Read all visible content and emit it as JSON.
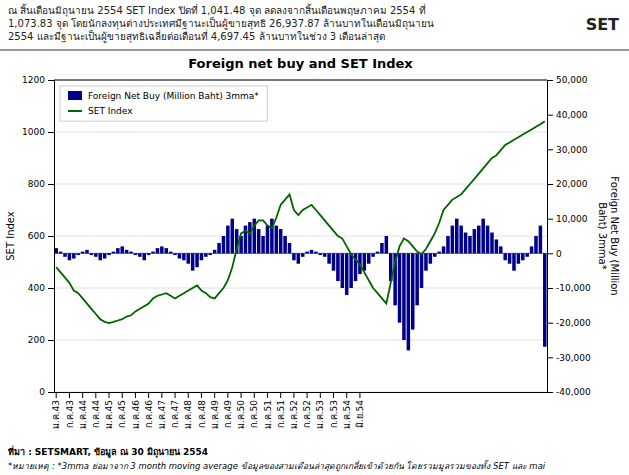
{
  "chart_data": {
    "type": "bar",
    "title": "Foreign net buy and SET Index",
    "subtitle": "ณ สิ้นเดือนมิถุนายน 2554 SET Index ปิดที่ 1,041.48 จุด ลดลงจากสิ้นเดือนพฤษภาคม 2554 ที่\n1,073.83 จุด  โดยนักลงทุนต่างประเทศมีฐานะเป็นผู้ขายสุทธิ 26,937.87 ล้านบาทในเดือนมิถุนายน\n2554 และมีฐานะเป็นผู้ขายสุทธิเฉลี่ยต่อเดือนที่ 4,697.45 ล้านบาทในช่วง 3 เดือนล่าสุด",
    "annotations": [
      "SET"
    ],
    "source": "ที่มา : SETSMART, ข้อมูล ณ 30 มิถุนายน 2554",
    "note": "*หมายเหตุ : *3mma ย่อมาจาก 3 month moving average  ข้อมูลของสามเดือนล่าสุดถูกเกลี่ยเข้าด้วยกัน  โดยรวมมูลรวมของทั้ง SET และ mai",
    "ylabel": "SET Index",
    "y2label": "Foreign Net Buy (Million\nBaht) 3mma*",
    "ylim": [
      0,
      1200
    ],
    "yticks": [
      0,
      200,
      400,
      600,
      800,
      1000,
      1200
    ],
    "y2lim": [
      -40000,
      50000
    ],
    "y2ticks": [
      {
        "value": -40000,
        "label": "-40,000"
      },
      {
        "value": -30000,
        "label": "-30,000"
      },
      {
        "value": -20000,
        "label": "-20,000"
      },
      {
        "value": -10000,
        "label": "-10,000"
      },
      0,
      {
        "value": 10000,
        "label": "10,000"
      },
      {
        "value": 20000,
        "label": "20,000"
      },
      {
        "value": 30000,
        "label": "30,000"
      },
      {
        "value": 40000,
        "label": "40,000"
      },
      {
        "value": 50000,
        "label": "50,000"
      }
    ],
    "grid": true,
    "legend": "upper-left",
    "categories": [
      "ม.ค.43",
      null,
      null,
      "ก.ค.43",
      null,
      null,
      "ม.ค.44",
      null,
      null,
      "ก.ค.44",
      null,
      null,
      "ม.ค.45",
      null,
      null,
      "ก.ค.45",
      null,
      null,
      "ม.ค.46",
      null,
      null,
      "ก.ค.46",
      null,
      null,
      "ม.ค.47",
      null,
      null,
      "ก.ค.47",
      null,
      null,
      "ม.ค.48",
      null,
      null,
      "ก.ค.48",
      null,
      null,
      "ม.ค.49",
      null,
      null,
      "ก.ค.49",
      null,
      null,
      "ม.ค.50",
      null,
      null,
      "ก.ค.50",
      null,
      null,
      "ม.ค.51",
      null,
      null,
      "ก.ค.51",
      null,
      null,
      "ม.ค.52",
      null,
      null,
      "ก.ค.52",
      null,
      null,
      "ม.ค.53",
      null,
      null,
      "ก.ค.53",
      null,
      null,
      "ม.ค.54",
      null,
      null,
      "มิ.ย.54",
      null,
      null,
      null,
      null,
      null,
      null,
      null,
      null,
      null,
      null,
      null,
      null,
      null,
      null,
      null,
      null,
      null,
      null,
      null,
      null,
      null,
      null,
      null,
      null,
      null,
      null,
      null,
      null,
      null,
      null,
      null,
      null,
      null,
      null,
      null,
      null,
      null,
      null,
      null,
      null,
      null,
      null
    ],
    "series": [
      {
        "name": "Foreign Net Buy (Million Baht) 3mma*",
        "type": "bar",
        "axis": "y2",
        "color": "#00008B",
        "values": [
          1500,
          500,
          -1000,
          -2000,
          -1500,
          -500,
          500,
          1000,
          -500,
          -1000,
          -2000,
          -1500,
          -500,
          500,
          1500,
          2000,
          1000,
          500,
          -500,
          -1000,
          -2000,
          -500,
          500,
          1500,
          2000,
          1500,
          500,
          -500,
          -1500,
          -2000,
          -3000,
          -5000,
          -4000,
          -2000,
          -1000,
          -500,
          1000,
          3000,
          5000,
          8000,
          10000,
          7000,
          5000,
          8000,
          9000,
          10000,
          7000,
          5000,
          8000,
          10000,
          8000,
          7000,
          5000,
          3000,
          -2000,
          -3000,
          -1000,
          500,
          1000,
          500,
          -500,
          -1000,
          -3000,
          -5000,
          -8000,
          -10000,
          -12000,
          -10000,
          -8000,
          -6000,
          -5000,
          -3000,
          -1000,
          500,
          3000,
          5000,
          -8000,
          -15000,
          -20000,
          -25000,
          -28000,
          -22000,
          -15000,
          -10000,
          -5000,
          -3000,
          -1000,
          500,
          2000,
          5000,
          8000,
          10000,
          8000,
          6000,
          5000,
          7000,
          8000,
          10000,
          8000,
          6000,
          4000,
          2000,
          -2000,
          -3000,
          -5000,
          -3000,
          -2000,
          -1000,
          2000,
          5000,
          8000,
          -26938
        ]
      },
      {
        "name": "SET Index",
        "type": "line",
        "color": "#006400",
        "values": [
          480,
          460,
          440,
          420,
          390,
          380,
          360,
          340,
          320,
          300,
          280,
          270,
          265,
          270,
          275,
          280,
          290,
          295,
          310,
          320,
          330,
          340,
          360,
          370,
          375,
          380,
          370,
          360,
          370,
          380,
          390,
          400,
          410,
          390,
          380,
          365,
          360,
          380,
          400,
          430,
          480,
          550,
          610,
          620,
          610,
          640,
          660,
          660,
          640,
          630,
          670,
          720,
          740,
          760,
          700,
          680,
          700,
          710,
          720,
          700,
          680,
          660,
          640,
          620,
          600,
          590,
          560,
          530,
          510,
          490,
          460,
          430,
          400,
          380,
          360,
          340,
          420,
          500,
          560,
          590,
          580,
          560,
          540,
          530,
          550,
          580,
          610,
          650,
          700,
          720,
          740,
          750,
          760,
          780,
          800,
          820,
          840,
          860,
          880,
          900,
          910,
          930,
          950,
          960,
          970,
          980,
          990,
          1000,
          1010,
          1020,
          1030,
          1041
        ]
      }
    ]
  }
}
